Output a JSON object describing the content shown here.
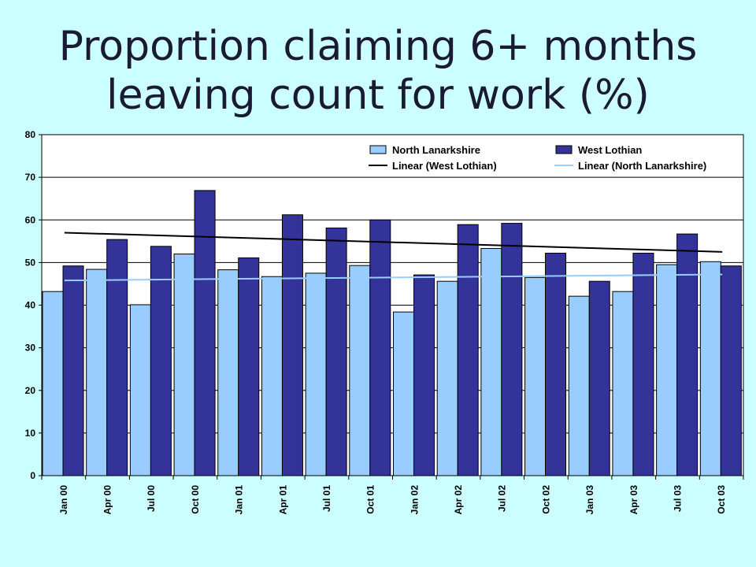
{
  "title_line1": "Proportion claiming 6+ months",
  "title_line2": "leaving count for work (%)",
  "chart_data": {
    "type": "bar",
    "categories": [
      "Jan 00",
      "Apr 00",
      "Jul 00",
      "Oct 00",
      "Jan 01",
      "Apr 01",
      "Jul 01",
      "Oct 01",
      "Jan 02",
      "Apr 02",
      "Jul 02",
      "Oct 02",
      "Jan 03",
      "Apr 03",
      "Jul 03",
      "Oct 03"
    ],
    "series": [
      {
        "name": "North Lanarkshire",
        "color": "#99ccff",
        "values": [
          43.2,
          48.4,
          40.1,
          52,
          48.3,
          46.7,
          47.5,
          49.3,
          38.4,
          45.6,
          53.3,
          46.5,
          42.1,
          43.2,
          49.5,
          50.2
        ]
      },
      {
        "name": "West Lothian",
        "color": "#333399",
        "values": [
          49.2,
          55.4,
          53.8,
          66.9,
          51.1,
          61.2,
          58.1,
          60,
          47.1,
          58.9,
          59.2,
          52.2,
          45.6,
          52.2,
          56.7,
          49.2
        ]
      }
    ],
    "trendlines": [
      {
        "name": "Linear (West Lothian)",
        "color": "#000000",
        "start": 57.0,
        "end": 52.5
      },
      {
        "name": "Linear (North Lanarkshire)",
        "color": "#99ccff",
        "start": 45.8,
        "end": 47.2
      }
    ],
    "ylim": [
      0,
      80
    ],
    "yticks": [
      0,
      10,
      20,
      30,
      40,
      50,
      60,
      70,
      80
    ],
    "grid": true,
    "legend_position": "top-right"
  }
}
